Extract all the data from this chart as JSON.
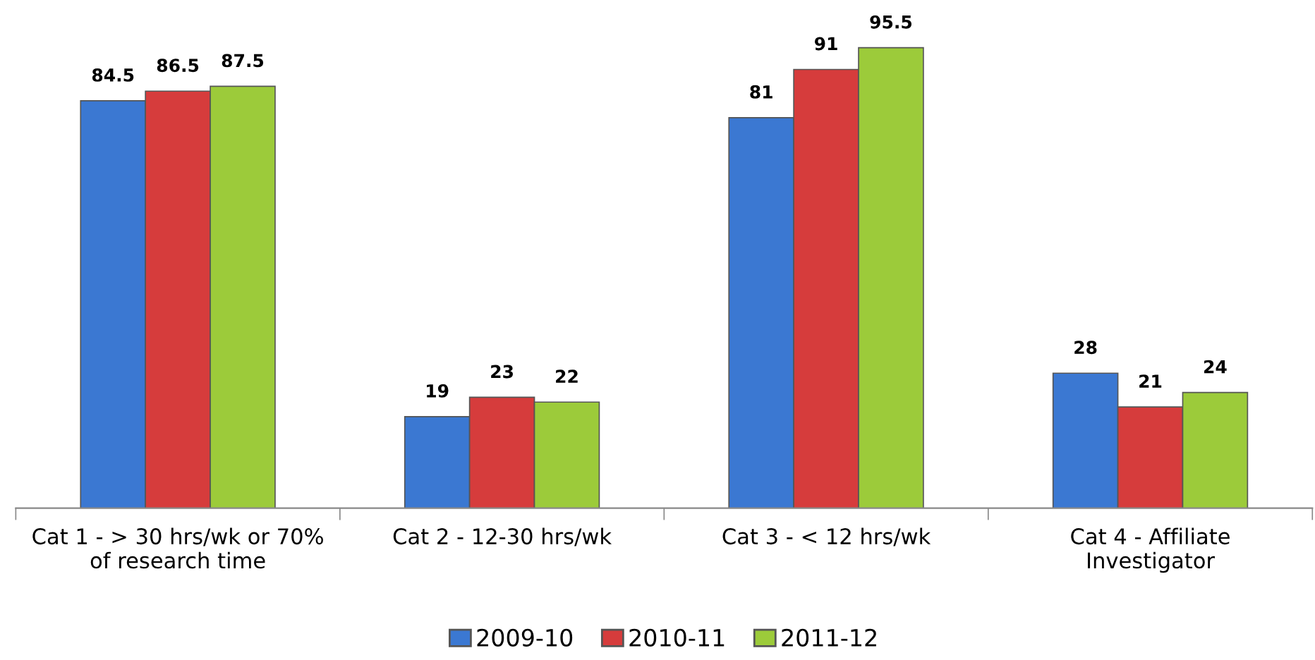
{
  "chart_data": {
    "type": "bar",
    "categories": [
      "Cat 1 - > 30 hrs/wk or 70%\nof research time",
      "Cat 2 - 12-30 hrs/wk",
      "Cat 3 - < 12 hrs/wk",
      "Cat 4 - Affiliate\nInvestigator"
    ],
    "series": [
      {
        "name": "2009-10",
        "color": "#3b78d2",
        "values": [
          84.5,
          19,
          81,
          28
        ]
      },
      {
        "name": "2010-11",
        "color": "#d63c3c",
        "values": [
          86.5,
          23,
          91,
          21
        ]
      },
      {
        "name": "2011-12",
        "color": "#9ccb3a",
        "values": [
          87.5,
          22,
          95.5,
          24
        ]
      }
    ],
    "data_labels": true,
    "legend": "bottom",
    "grid": false,
    "tick_labels": "x"
  }
}
